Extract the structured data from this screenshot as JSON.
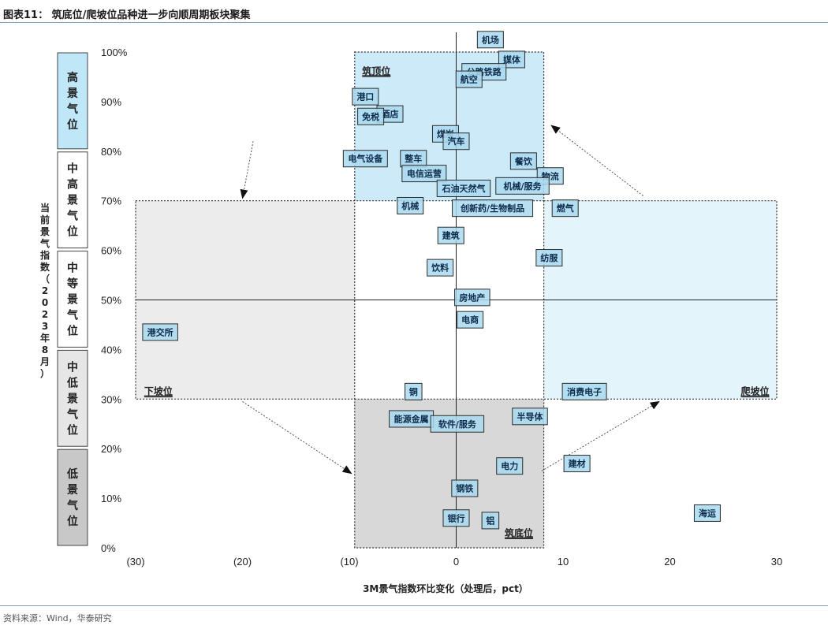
{
  "title": "图表11： 筑底位/爬坡位品种进一步向顺周期板块聚集",
  "source": "资料来源：Wind，华泰研究",
  "chart_data": {
    "type": "scatter",
    "xlabel": "3M景气指数环比变化（处理后，pct）",
    "ylabel": "当前景气指数（2023年8月）",
    "xlim": [
      -30,
      30
    ],
    "ylim": [
      0,
      100
    ],
    "x_ticks": [
      "(30)",
      "(20)",
      "(10)",
      "0",
      "10",
      "20",
      "30"
    ],
    "y_ticks": [
      "0%",
      "10%",
      "20%",
      "30%",
      "40%",
      "50%",
      "60%",
      "70%",
      "80%",
      "90%",
      "100%"
    ],
    "levels": [
      {
        "label": "高景气位",
        "from": 80,
        "to": 100,
        "color": "#bfe7f7"
      },
      {
        "label": "中高景气位",
        "from": 60,
        "to": 80,
        "color": "#ffffff"
      },
      {
        "label": "中等景气位",
        "from": 40,
        "to": 60,
        "color": "#ffffff"
      },
      {
        "label": "中低景气位",
        "from": 20,
        "to": 40,
        "color": "#e6e6e6"
      },
      {
        "label": "低景气位",
        "from": 0,
        "to": 20,
        "color": "#c8c8c8"
      }
    ],
    "zones": [
      {
        "label": "筑顶位",
        "x": [
          -9.5,
          8.2
        ],
        "y": [
          70,
          100
        ],
        "color": "#cdeaf8"
      },
      {
        "label": "爬坡位",
        "x": [
          8.2,
          30
        ],
        "y": [
          30,
          70
        ],
        "color": "#e3f4fb"
      },
      {
        "label": "筑底位",
        "x": [
          -9.5,
          8.2
        ],
        "y": [
          0,
          30
        ],
        "color": "#d8d8d8"
      },
      {
        "label": "下坡位",
        "x": [
          -30,
          -9.5
        ],
        "y": [
          30,
          70
        ],
        "color": "#ececec"
      }
    ],
    "points": [
      {
        "name": "机场",
        "x": 3.2,
        "y": 102.5
      },
      {
        "name": "媒体",
        "x": 5.2,
        "y": 98.5
      },
      {
        "name": "公路铁路",
        "x": 2.6,
        "y": 96
      },
      {
        "name": "航空",
        "x": 1.2,
        "y": 94.5
      },
      {
        "name": "港口",
        "x": -8.5,
        "y": 91
      },
      {
        "name": "酒店",
        "x": -6.2,
        "y": 87.5
      },
      {
        "name": "免税",
        "x": -8,
        "y": 87
      },
      {
        "name": "煤炭",
        "x": -1,
        "y": 83.5
      },
      {
        "name": "汽车",
        "x": 0,
        "y": 82
      },
      {
        "name": "电气设备",
        "x": -8.5,
        "y": 78.5
      },
      {
        "name": "整车",
        "x": -4,
        "y": 78.5
      },
      {
        "name": "餐饮",
        "x": 6.3,
        "y": 78
      },
      {
        "name": "电信运营",
        "x": -3,
        "y": 75.5
      },
      {
        "name": "物流",
        "x": 8.8,
        "y": 75
      },
      {
        "name": "机械/服务",
        "x": 6.2,
        "y": 73
      },
      {
        "name": "石油天然气",
        "x": 0.7,
        "y": 72.5
      },
      {
        "name": "机械",
        "x": -4.3,
        "y": 69
      },
      {
        "name": "创新药/生物制品",
        "x": 3.4,
        "y": 68.5
      },
      {
        "name": "燃气",
        "x": 10.2,
        "y": 68.5
      },
      {
        "name": "建筑",
        "x": -0.5,
        "y": 63
      },
      {
        "name": "纺服",
        "x": 8.7,
        "y": 58.5
      },
      {
        "name": "饮料",
        "x": -1.5,
        "y": 56.5
      },
      {
        "name": "房地产",
        "x": 1.5,
        "y": 50.5
      },
      {
        "name": "电商",
        "x": 1.3,
        "y": 46
      },
      {
        "name": "港交所",
        "x": -27.7,
        "y": 43.5
      },
      {
        "name": "半导体",
        "x": 6.9,
        "y": 26.5
      },
      {
        "name": "消费电子",
        "x": 12,
        "y": 31.5
      },
      {
        "name": "铜",
        "x": -4,
        "y": 31.5
      },
      {
        "name": "能源金属",
        "x": -4.2,
        "y": 26
      },
      {
        "name": "软件/服务",
        "x": 0.1,
        "y": 25
      },
      {
        "name": "电力",
        "x": 5,
        "y": 16.5
      },
      {
        "name": "建材",
        "x": 11.3,
        "y": 17
      },
      {
        "name": "钢铁",
        "x": 0.8,
        "y": 12
      },
      {
        "name": "银行",
        "x": 0,
        "y": 6
      },
      {
        "name": "铝",
        "x": 3.2,
        "y": 5.5
      },
      {
        "name": "海运",
        "x": 23.5,
        "y": 7
      }
    ]
  }
}
